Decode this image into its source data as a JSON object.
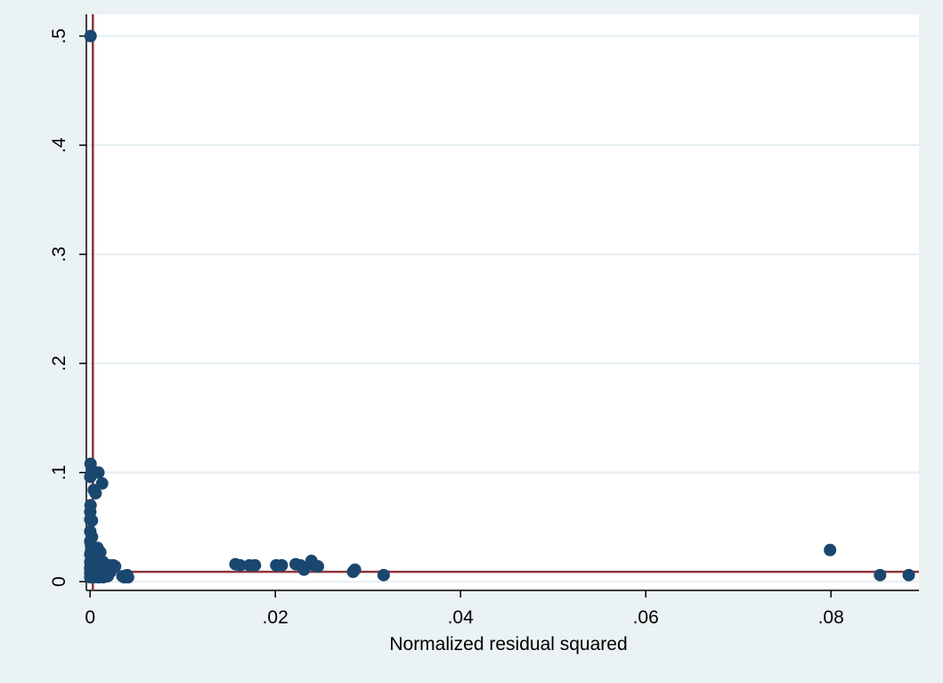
{
  "chart_data": {
    "type": "scatter",
    "title": "",
    "xlabel": "Normalized residual squared",
    "ylabel": "",
    "xlim": [
      -0.0004,
      0.0895
    ],
    "ylim": [
      -0.008,
      0.52
    ],
    "grid": "horizontal",
    "legend": "none",
    "x_ticks": [
      {
        "value": 0,
        "label": "0"
      },
      {
        "value": 0.02,
        "label": ".02"
      },
      {
        "value": 0.04,
        "label": ".04"
      },
      {
        "value": 0.06,
        "label": ".06"
      },
      {
        "value": 0.08,
        "label": ".08"
      }
    ],
    "y_ticks": [
      {
        "value": 0,
        "label": "0"
      },
      {
        "value": 0.1,
        "label": ".1"
      },
      {
        "value": 0.2,
        "label": ".2"
      },
      {
        "value": 0.3,
        "label": ".3"
      },
      {
        "value": 0.4,
        "label": ".4"
      },
      {
        "value": 0.5,
        "label": ".5"
      }
    ],
    "reference_lines": {
      "vertical_x": 0.0003,
      "horizontal_y": 0.009
    },
    "colors": {
      "background": "#eaf2f3",
      "plot_area": "#ffffff",
      "grid": "#e5eef2",
      "marker": "#1a476f",
      "reference_line": "#90353b"
    },
    "points": [
      [
        5e-05,
        0.5
      ],
      [
        5e-05,
        0.108
      ],
      [
        0.0002,
        0.102
      ],
      [
        2e-05,
        0.096
      ],
      [
        0.0009,
        0.1
      ],
      [
        0.0013,
        0.09
      ],
      [
        0.0004,
        0.084
      ],
      [
        0.0006,
        0.081
      ],
      [
        5e-05,
        0.07
      ],
      [
        2e-05,
        0.064
      ],
      [
        2e-05,
        0.057
      ],
      [
        0.0002,
        0.056
      ],
      [
        2e-05,
        0.046
      ],
      [
        0.0002,
        0.041
      ],
      [
        2e-05,
        0.037
      ],
      [
        0.0001,
        0.033
      ],
      [
        0.0003,
        0.031
      ],
      [
        0.0008,
        0.031
      ],
      [
        0.0006,
        0.028
      ],
      [
        0.0011,
        0.027
      ],
      [
        2e-05,
        0.025
      ],
      [
        0.0002,
        0.022
      ],
      [
        0.0005,
        0.022
      ],
      [
        0.0009,
        0.02
      ],
      [
        0.0014,
        0.018
      ],
      [
        2e-05,
        0.018
      ],
      [
        0.0003,
        0.016
      ],
      [
        0.0007,
        0.015
      ],
      [
        0.0012,
        0.015
      ],
      [
        0.0017,
        0.014
      ],
      [
        0.0021,
        0.015
      ],
      [
        0.0025,
        0.015
      ],
      [
        0.0027,
        0.014
      ],
      [
        2e-05,
        0.012
      ],
      [
        0.0004,
        0.011
      ],
      [
        0.0008,
        0.01
      ],
      [
        0.0013,
        0.01
      ],
      [
        0.0018,
        0.01
      ],
      [
        0.0022,
        0.009
      ],
      [
        2e-05,
        0.008
      ],
      [
        0.0003,
        0.007
      ],
      [
        0.0006,
        0.006
      ],
      [
        0.001,
        0.006
      ],
      [
        0.0015,
        0.006
      ],
      [
        0.0019,
        0.005
      ],
      [
        2e-05,
        0.004
      ],
      [
        0.0004,
        0.004
      ],
      [
        0.0009,
        0.004
      ],
      [
        0.0014,
        0.004
      ],
      [
        0.0005,
        0.013
      ],
      [
        0.001,
        0.012
      ],
      [
        0.0016,
        0.012
      ],
      [
        0.0001,
        0.028
      ],
      [
        0.0002,
        0.019
      ],
      [
        2e-05,
        0.013
      ],
      [
        0.0035,
        0.005
      ],
      [
        0.004,
        0.006
      ],
      [
        0.0041,
        0.004
      ],
      [
        0.0037,
        0.004
      ],
      [
        0.0157,
        0.016
      ],
      [
        0.0162,
        0.015
      ],
      [
        0.0172,
        0.015
      ],
      [
        0.0178,
        0.015
      ],
      [
        0.0201,
        0.015
      ],
      [
        0.0207,
        0.015
      ],
      [
        0.0222,
        0.016
      ],
      [
        0.0227,
        0.015
      ],
      [
        0.0231,
        0.011
      ],
      [
        0.0239,
        0.019
      ],
      [
        0.0242,
        0.015
      ],
      [
        0.0246,
        0.014
      ],
      [
        0.0284,
        0.009
      ],
      [
        0.0286,
        0.011
      ],
      [
        0.0317,
        0.006
      ],
      [
        0.0799,
        0.029
      ],
      [
        0.0853,
        0.006
      ],
      [
        0.0884,
        0.006
      ]
    ]
  }
}
